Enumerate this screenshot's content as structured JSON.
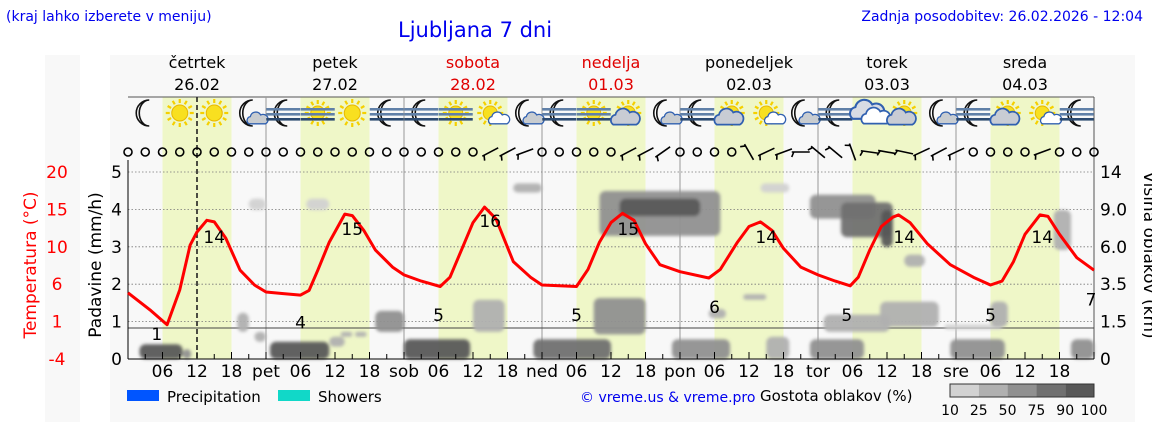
{
  "header": {
    "hint": "(kraj lahko izberete v meniju)",
    "title": "Ljubljana 7 dni",
    "updated": "Zadnja posodobitev: 26.02.2026 - 12:04"
  },
  "days": [
    {
      "name": "četrtek",
      "date": "26.02",
      "weekend": false
    },
    {
      "name": "petek",
      "date": "27.02",
      "weekend": false
    },
    {
      "name": "sobota",
      "date": "28.02",
      "weekend": true
    },
    {
      "name": "nedelja",
      "date": "01.03",
      "weekend": true
    },
    {
      "name": "ponedeljek",
      "date": "02.03",
      "weekend": false
    },
    {
      "name": "torek",
      "date": "03.03",
      "weekend": false
    },
    {
      "name": "sreda",
      "date": "04.03",
      "weekend": false
    }
  ],
  "colors": {
    "temperature": "#ff0000",
    "daylight": "#eff7c8",
    "precipitation": "#0055ff",
    "showers": "#11d8c8",
    "link": "#0000ee",
    "weekend": "#e00000"
  },
  "chart_data": {
    "type": "line",
    "current_time_hour": 12,
    "x_tick_labels": [
      "",
      "06",
      "12",
      "18",
      "pet",
      "06",
      "12",
      "18",
      "sob",
      "06",
      "12",
      "18",
      "ned",
      "06",
      "12",
      "18",
      "pon",
      "06",
      "12",
      "18",
      "tor",
      "06",
      "12",
      "18",
      "sre",
      "06",
      "12",
      "18"
    ],
    "left_axis": {
      "label": "Padavine (mm/h)",
      "ticks": [
        "0",
        "1",
        "2",
        "3",
        "4",
        "5"
      ],
      "ylim": [
        0,
        5
      ]
    },
    "temp_axis": {
      "label": "Temperatura (°C)",
      "ticks": [
        "-4",
        "1",
        "6",
        "10",
        "15",
        "20"
      ],
      "ylim": [
        -4,
        20
      ]
    },
    "right_axis": {
      "label": "Višina oblakov (km)",
      "ticks": [
        "0",
        "1.5",
        "3.5",
        "6.0",
        "9.0",
        "14"
      ]
    },
    "temperature": {
      "hours": [
        0,
        4,
        6.8,
        9,
        10.8,
        12,
        13.7,
        15,
        17,
        19.5,
        22,
        24,
        27,
        30,
        31.5,
        33,
        35,
        37.7,
        39,
        41,
        43,
        46,
        48,
        51,
        54.3,
        56,
        58,
        60,
        62,
        64,
        67,
        70,
        72,
        75,
        78,
        80,
        82,
        84,
        86,
        88,
        90,
        92.5,
        96,
        101,
        103,
        106,
        108,
        110,
        112,
        114,
        117,
        120,
        123,
        125.6,
        127,
        129,
        131,
        133,
        134,
        136,
        139,
        143,
        147,
        150,
        152,
        154,
        156,
        158.6,
        160,
        162,
        165,
        168
      ],
      "values": [
        4.5,
        2.2,
        0.4,
        4.9,
        10.6,
        12.3,
        13.8,
        13.6,
        11.5,
        7.4,
        5.5,
        4.6,
        4.4,
        4.2,
        4.8,
        7.4,
        11,
        14.6,
        14.4,
        12.5,
        10,
        7.8,
        6.8,
        6.0,
        5.3,
        6.5,
        10,
        13.5,
        15.5,
        14,
        8.5,
        6.5,
        5.5,
        5.4,
        5.3,
        7.5,
        11,
        13.5,
        14.7,
        13.8,
        10.8,
        8.1,
        7.2,
        6.4,
        7.5,
        11,
        13,
        13.6,
        12.5,
        10.2,
        7.8,
        6.8,
        6.0,
        5.4,
        6.5,
        10,
        13,
        14.2,
        14.5,
        13.5,
        10.8,
        8.1,
        6.5,
        5.5,
        6.0,
        8.5,
        12,
        14.5,
        14.3,
        12,
        9.0,
        7.4
      ]
    },
    "temperature_labels": [
      {
        "hour": 5,
        "text": "1"
      },
      {
        "hour": 15,
        "text": "14"
      },
      {
        "hour": 30,
        "text": "4"
      },
      {
        "hour": 39,
        "text": "15"
      },
      {
        "hour": 54,
        "text": "5"
      },
      {
        "hour": 63,
        "text": "16"
      },
      {
        "hour": 78,
        "text": "5"
      },
      {
        "hour": 87,
        "text": "15"
      },
      {
        "hour": 102,
        "text": "6"
      },
      {
        "hour": 111,
        "text": "14"
      },
      {
        "hour": 125,
        "text": "5"
      },
      {
        "hour": 135,
        "text": "14"
      },
      {
        "hour": 150,
        "text": "5"
      },
      {
        "hour": 159,
        "text": "14"
      },
      {
        "hour": 168,
        "text": "7"
      }
    ],
    "temperature_label_values": [
      1,
      14,
      4,
      15,
      5,
      16,
      5,
      15,
      6,
      14,
      5,
      14,
      5,
      14,
      7
    ],
    "precipitation": [],
    "clouds": [
      [
        2,
        9.5,
        0,
        0.6,
        90
      ],
      [
        9.5,
        11,
        0,
        0.4,
        50
      ],
      [
        19,
        21,
        1.1,
        2.0,
        25
      ],
      [
        22,
        24,
        0.7,
        1.1,
        25
      ],
      [
        21,
        24,
        9,
        10.5,
        15
      ],
      [
        24.7,
        35,
        0,
        0.7,
        90
      ],
      [
        35,
        37.7,
        0.5,
        0.9,
        25
      ],
      [
        31,
        35,
        9,
        10.5,
        15
      ],
      [
        37,
        39,
        0.9,
        1.1,
        25
      ],
      [
        39.5,
        41.5,
        0.9,
        1.1,
        25
      ],
      [
        43,
        48,
        1.1,
        2.1,
        50
      ],
      [
        48,
        59.5,
        0,
        0.8,
        90
      ],
      [
        60,
        65.5,
        1.1,
        2.7,
        25
      ],
      [
        67,
        72,
        11.3,
        12.5,
        25
      ],
      [
        70.5,
        84,
        0,
        0.8,
        75
      ],
      [
        81,
        90,
        1.0,
        2.8,
        50
      ],
      [
        82,
        103,
        6.9,
        11.5,
        50
      ],
      [
        85.5,
        99.5,
        8.5,
        10.5,
        90
      ],
      [
        94.6,
        104.7,
        0,
        0.8,
        50
      ],
      [
        107,
        111,
        2.7,
        3.0,
        25
      ],
      [
        101,
        104,
        1.7,
        2.2,
        25
      ],
      [
        110,
        115,
        11.3,
        12.5,
        15
      ],
      [
        111,
        115,
        0,
        0.9,
        25
      ],
      [
        118.6,
        128,
        0,
        0.8,
        50
      ],
      [
        118.6,
        130,
        8.3,
        11,
        50
      ],
      [
        124,
        133,
        6.8,
        10,
        75
      ],
      [
        131,
        133,
        6,
        9,
        90
      ],
      [
        121,
        132.5,
        1.1,
        1.9,
        25
      ],
      [
        130.8,
        141,
        1.3,
        2.6,
        25
      ],
      [
        135,
        138.6,
        4.7,
        5.5,
        25
      ],
      [
        142,
        152,
        1.2,
        1.4,
        15
      ],
      [
        143,
        152.5,
        0,
        0.8,
        50
      ],
      [
        150,
        153,
        1.3,
        2.6,
        25
      ],
      [
        161,
        164,
        5.8,
        9,
        25
      ],
      [
        164,
        168,
        0,
        0.8,
        50
      ]
    ],
    "weather_icons": [
      "moon",
      "sun",
      "sun",
      "moon-cloud",
      "moon-fog",
      "sun-fog",
      "sun",
      "moon-fog",
      "moon-fog",
      "sun-fog",
      "sun-smallcloud",
      "moon-cloud",
      "moon-fog",
      "sun-fog",
      "sun-cloud",
      "moon-cloud",
      "moon-fog",
      "sun-cloud",
      "sun-smallcloud",
      "moon-cloud",
      "moon-fog",
      "cloud",
      "sun-cloud",
      "moon-cloud",
      "moon-fog",
      "sun-cloud",
      "sun-smallcloud",
      "moon-fog"
    ],
    "wind_direction_deg": [
      "calm",
      "calm",
      "calm",
      "calm",
      "calm",
      "calm",
      "calm",
      "calm",
      "calm",
      "calm",
      "calm",
      "calm",
      "calm",
      "calm",
      "calm",
      "calm",
      "calm",
      "calm",
      "calm",
      "calm",
      "calm",
      -28,
      -28,
      -20,
      "calm",
      "calm",
      "calm",
      "calm",
      "calm",
      -28,
      -28,
      -35,
      "calm",
      "calm",
      "calm",
      "calm",
      60,
      -25,
      -20,
      0,
      40,
      40,
      70,
      8,
      10,
      12,
      -25,
      -28,
      -25,
      "calm",
      "calm",
      "calm",
      "calm",
      -20,
      "calm",
      "calm",
      "calm"
    ],
    "legend": [
      {
        "label": "Precipitation",
        "color": "#0055ff"
      },
      {
        "label": "Showers",
        "color": "#11d8c8"
      }
    ],
    "cloud_density_legend": {
      "label": "Gostota oblakov (%)",
      "ticks": [
        "10",
        "25",
        "50",
        "75",
        "90",
        "100"
      ],
      "colors": [
        "#d2d2d2",
        "#b0b0b0",
        "#909090",
        "#707070",
        "#585858"
      ]
    },
    "credit": "© vreme.us & vreme.pro"
  }
}
